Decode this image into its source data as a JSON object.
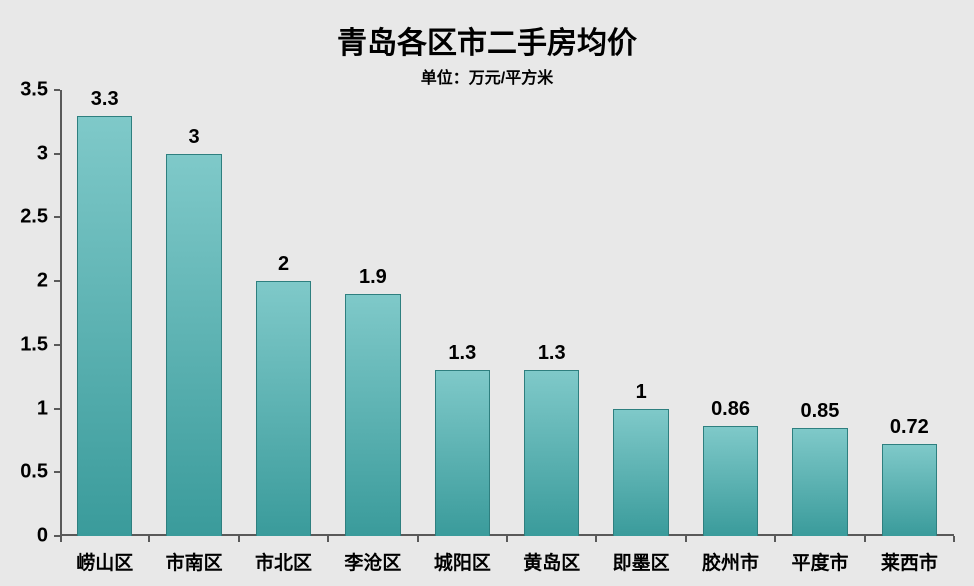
{
  "chart": {
    "type": "bar",
    "title": "青岛各区市二手房均价",
    "subtitle": "单位：万元/平方米",
    "title_fontsize": 30,
    "subtitle_fontsize": 16,
    "categories": [
      "崂山区",
      "市南区",
      "市北区",
      "李沧区",
      "城阳区",
      "黄岛区",
      "即墨区",
      "胶州市",
      "平度市",
      "莱西市"
    ],
    "values": [
      3.3,
      3,
      2,
      1.9,
      1.3,
      1.3,
      1,
      0.86,
      0.85,
      0.72
    ],
    "value_labels": [
      "3.3",
      "3",
      "2",
      "1.9",
      "1.3",
      "1.3",
      "1",
      "0.86",
      "0.85",
      "0.72"
    ],
    "bar_fill_top": "#7fc9c9",
    "bar_fill_bottom": "#3a9b9b",
    "bar_border": "#2e7f7f",
    "axis_color": "#595959",
    "background_color": "#e8e8e8",
    "ylim": [
      0,
      3.5
    ],
    "yticks": [
      0,
      0.5,
      1,
      1.5,
      2,
      2.5,
      3,
      3.5
    ],
    "ytick_labels": [
      "0",
      "0.5",
      "1",
      "1.5",
      "2",
      "2.5",
      "3",
      "3.5"
    ],
    "ytick_fontsize": 20,
    "bar_label_fontsize": 20,
    "xtick_fontsize": 19,
    "bar_width_ratio": 0.62
  }
}
